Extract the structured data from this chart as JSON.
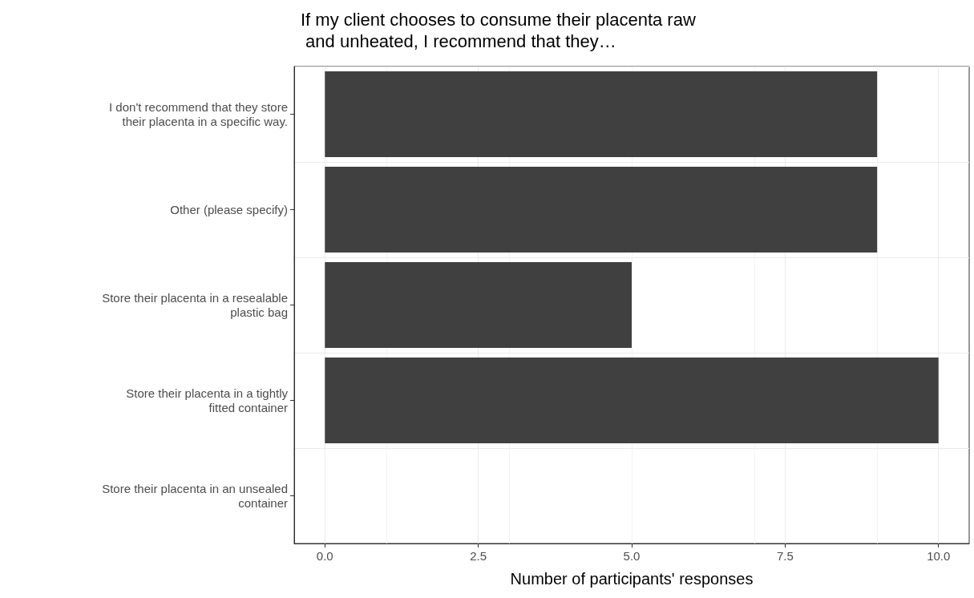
{
  "chart_data": {
    "type": "bar",
    "orientation": "horizontal",
    "title": "If my client chooses to consume their placenta raw\n and unheated, I recommend that they…",
    "xlabel": "Number of participants' responses",
    "categories": [
      "I don't recommend that they store\ntheir placenta in a specific way.",
      "Other (please specify)",
      "Store their placenta in a resealable\nplastic bag",
      "Store their placenta in a tightly\nfitted container",
      "Store their placenta in an unsealed\ncontainer"
    ],
    "values": [
      9,
      9,
      5,
      10,
      0
    ],
    "color": "#404040",
    "xlim": [
      -0.5,
      10.5
    ],
    "xticks": [
      {
        "value": 0,
        "label": "0.0"
      },
      {
        "value": 2.5,
        "label": "2.5"
      },
      {
        "value": 5,
        "label": "5.0"
      },
      {
        "value": 7.5,
        "label": "7.5"
      },
      {
        "value": 10,
        "label": "10.0"
      }
    ],
    "grid": true
  }
}
